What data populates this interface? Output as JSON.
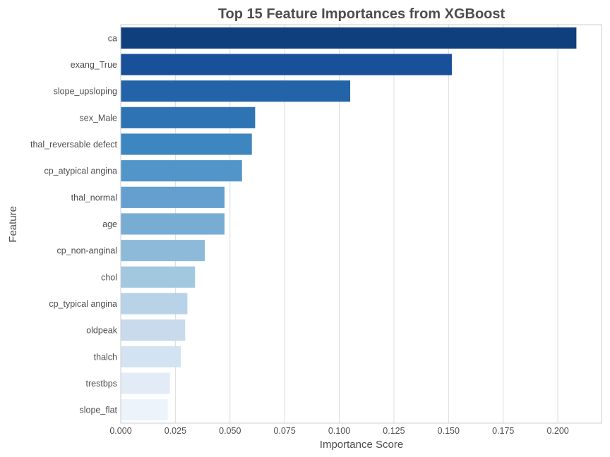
{
  "chart_data": {
    "type": "bar",
    "orientation": "horizontal",
    "title": "Top 15 Feature Importances from XGBoost",
    "xlabel": "Importance Score",
    "ylabel": "Feature",
    "xlim": [
      0,
      0.22
    ],
    "xticks": [
      "0.000",
      "0.025",
      "0.050",
      "0.075",
      "0.100",
      "0.125",
      "0.150",
      "0.175",
      "0.200"
    ],
    "grid": true,
    "categories": [
      "ca",
      "exang_True",
      "slope_upsloping",
      "sex_Male",
      "thal_reversable defect",
      "cp_atypical angina",
      "thal_normal",
      "age",
      "cp_non-anginal",
      "chol",
      "cp_typical angina",
      "oldpeak",
      "thalch",
      "trestbps",
      "slope_flat"
    ],
    "values": [
      0.2085,
      0.1515,
      0.105,
      0.0615,
      0.06,
      0.0555,
      0.0475,
      0.0475,
      0.0385,
      0.034,
      0.0305,
      0.0295,
      0.0275,
      0.0225,
      0.0215
    ],
    "colors": [
      "#0f3f7c",
      "#18509a",
      "#2363a8",
      "#2e74b5",
      "#3e86c0",
      "#5296c9",
      "#659fd0",
      "#78acd3",
      "#8dbad8",
      "#a2c8e0",
      "#b8d2e8",
      "#c8daec",
      "#d4e3f2",
      "#e2ebf6",
      "#edf3fb"
    ]
  }
}
